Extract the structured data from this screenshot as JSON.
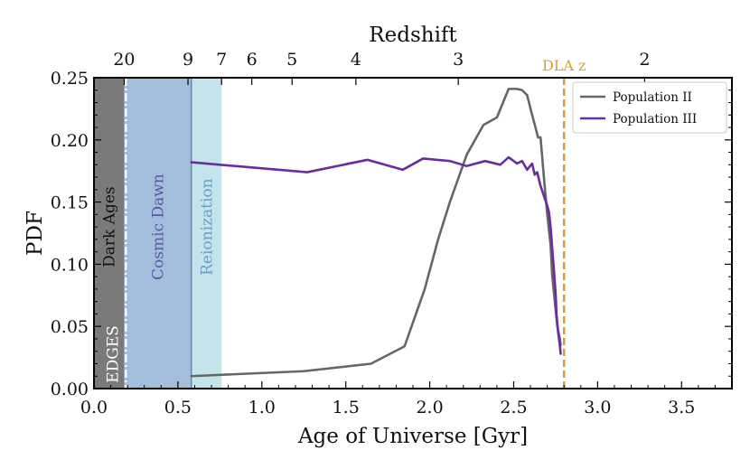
{
  "chart_data": {
    "type": "line",
    "xlabel": "Age of Universe [Gyr]",
    "ylabel": "PDF",
    "top_axis_label": "Redshift",
    "xlim": [
      0.0,
      3.8
    ],
    "ylim": [
      0.0,
      0.25
    ],
    "x_ticks": [
      "0.0",
      "0.5",
      "1.0",
      "1.5",
      "2.0",
      "2.5",
      "3.0",
      "3.5"
    ],
    "x_tick_values": [
      0.0,
      0.5,
      1.0,
      1.5,
      2.0,
      2.5,
      3.0,
      3.5
    ],
    "y_ticks": [
      "0.00",
      "0.05",
      "0.10",
      "0.15",
      "0.20",
      "0.25"
    ],
    "y_tick_values": [
      0.0,
      0.05,
      0.1,
      0.15,
      0.2,
      0.25
    ],
    "top_ticks": [
      {
        "label": "20",
        "age": 0.18
      },
      {
        "label": "9",
        "age": 0.56
      },
      {
        "label": "7",
        "age": 0.76
      },
      {
        "label": "6",
        "age": 0.94
      },
      {
        "label": "5",
        "age": 1.18
      },
      {
        "label": "4",
        "age": 1.56
      },
      {
        "label": "3",
        "age": 2.17
      },
      {
        "label": "2",
        "age": 3.28
      }
    ],
    "regions": [
      {
        "name": "Dark Ages",
        "x": [
          0.0,
          0.18
        ],
        "color": "#7a7a7a",
        "text_color": "#111111"
      },
      {
        "name": "Cosmic Dawn",
        "x": [
          0.18,
          0.58
        ],
        "color": "#a3bedb",
        "text_color": "#5a57a8"
      },
      {
        "name": "Reionization",
        "x": [
          0.58,
          0.76
        ],
        "color": "#c3e4ea",
        "text_color": "#6b9ec9"
      }
    ],
    "edges_label": "EDGES",
    "edges_x": 0.19,
    "dla": {
      "label": "DLA z",
      "x": 2.8,
      "color": "#d8a030"
    },
    "series": [
      {
        "name": "Population II",
        "color": "#666666",
        "x": [
          0.58,
          1.25,
          1.65,
          1.85,
          1.97,
          2.05,
          2.12,
          2.22,
          2.32,
          2.4,
          2.47,
          2.52,
          2.55,
          2.58,
          2.61,
          2.63,
          2.645,
          2.66,
          2.67,
          2.68,
          2.7,
          2.72,
          2.73,
          2.745,
          2.76,
          2.775,
          2.78
        ],
        "y": [
          0.01,
          0.014,
          0.02,
          0.034,
          0.08,
          0.12,
          0.15,
          0.188,
          0.212,
          0.218,
          0.241,
          0.241,
          0.24,
          0.236,
          0.22,
          0.21,
          0.202,
          0.202,
          0.186,
          0.17,
          0.14,
          0.115,
          0.09,
          0.07,
          0.05,
          0.04,
          0.035
        ]
      },
      {
        "name": "Population III",
        "color": "#6a2da0",
        "x": [
          0.58,
          1.27,
          1.63,
          1.84,
          1.96,
          2.12,
          2.22,
          2.33,
          2.42,
          2.47,
          2.52,
          2.55,
          2.58,
          2.61,
          2.625,
          2.64,
          2.66,
          2.68,
          2.7,
          2.71,
          2.72,
          2.73,
          2.74,
          2.75,
          2.755,
          2.765,
          2.775,
          2.78
        ],
        "y": [
          0.182,
          0.174,
          0.184,
          0.176,
          0.185,
          0.183,
          0.179,
          0.183,
          0.18,
          0.186,
          0.181,
          0.183,
          0.176,
          0.181,
          0.172,
          0.174,
          0.163,
          0.155,
          0.147,
          0.142,
          0.13,
          0.112,
          0.095,
          0.076,
          0.06,
          0.045,
          0.035,
          0.028
        ]
      }
    ],
    "legend": [
      "Population II",
      "Population III"
    ],
    "legend_position": "top-right"
  }
}
